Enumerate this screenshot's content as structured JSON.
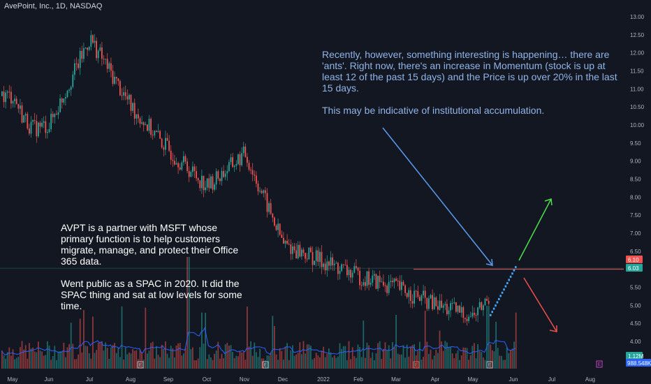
{
  "header": {
    "ticker": "AvePoint, Inc., 1D, NASDAQ"
  },
  "annotations": {
    "blue_para1": "Recently, however, something interesting is happening… there are 'ants'. Right now, there's an increase in Momentum (stock is up at least 12 of the past 15 days) and the Price is up over 20% in the last 15 days.",
    "blue_para2": "This may be indicative of institutional accumulation.",
    "white_para1": "AVPT is a partner with MSFT whose primary function is to help customers migrate, manage, and protect their Office 365 data.",
    "white_para2": "Went public as a SPAC in 2020. It did the SPAC thing and sat at low levels for some time."
  },
  "price_tags": {
    "upper": "6.10",
    "lower": "6.03",
    "volume": "1.12M",
    "volume_avg": "988.548K"
  },
  "earnings_marker": "E",
  "colors": {
    "bg": "#131722",
    "up": "#26a69a",
    "down": "#ef5350",
    "ants": "#42a5f5",
    "arrow_blue": "#5b9cf0",
    "arrow_green": "#4ce04c",
    "arrow_red": "#f05050",
    "ma_line": "#2962ff",
    "resistance": "#ef5350"
  },
  "chart_data": {
    "type": "candlestick",
    "price_axis_ticks": [
      "13.00",
      "12.50",
      "12.00",
      "11.50",
      "11.00",
      "10.50",
      "10.00",
      "9.50",
      "9.00",
      "8.50",
      "8.00",
      "7.50",
      "7.00",
      "6.50",
      "6.00",
      "5.50",
      "5.00",
      "4.50",
      "4.00"
    ],
    "time_axis_labels": [
      "May",
      "Jun",
      "Jul",
      "Aug",
      "Sep",
      "Oct",
      "Nov",
      "Dec",
      "2022",
      "Feb",
      "Mar",
      "Apr",
      "May",
      "Jun",
      "Jul",
      "Aug"
    ],
    "ylim": [
      3.7,
      13.2
    ],
    "resistance_level": 6.0,
    "price_path": [
      {
        "month": "May 2021",
        "close": 10.8
      },
      {
        "month": "Jun 2021",
        "close": 10.0
      },
      {
        "month": "Jul 2021",
        "close": 12.4
      },
      {
        "month": "Aug 2021",
        "close": 10.5
      },
      {
        "month": "Sep 2021",
        "close": 9.3
      },
      {
        "month": "Oct 2021",
        "close": 8.3
      },
      {
        "month": "Nov 2021",
        "close": 9.2
      },
      {
        "month": "Dec 2021",
        "close": 6.7
      },
      {
        "month": "Jan 2022",
        "close": 6.2
      },
      {
        "month": "Feb 2022",
        "close": 5.8
      },
      {
        "month": "Mar 2022",
        "close": 5.5
      },
      {
        "month": "Apr 2022",
        "close": 5.0
      },
      {
        "month": "May 2022",
        "close": 4.7
      },
      {
        "month": "Jun 2022",
        "close": 6.03
      }
    ]
  }
}
